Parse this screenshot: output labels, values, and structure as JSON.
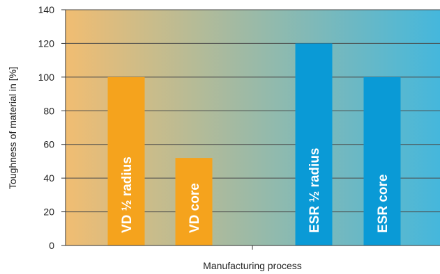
{
  "chart_data": {
    "type": "bar",
    "categories": [
      "VD ½ radius",
      "VD core",
      "ESR ½ radius",
      "ESR core"
    ],
    "values": [
      100,
      52,
      120,
      100
    ],
    "bar_colors": [
      "#f5a31d",
      "#f5a31d",
      "#0a9ad6",
      "#0a9ad6"
    ],
    "xlabel": "Manufacturing process",
    "ylabel": "Toughness of material in [%]",
    "ylim": [
      0,
      140
    ],
    "yticks": [
      0,
      20,
      40,
      60,
      80,
      100,
      120,
      140
    ],
    "grid": true,
    "background_gradient": [
      "#f1bd72",
      "#45b7dc"
    ]
  }
}
